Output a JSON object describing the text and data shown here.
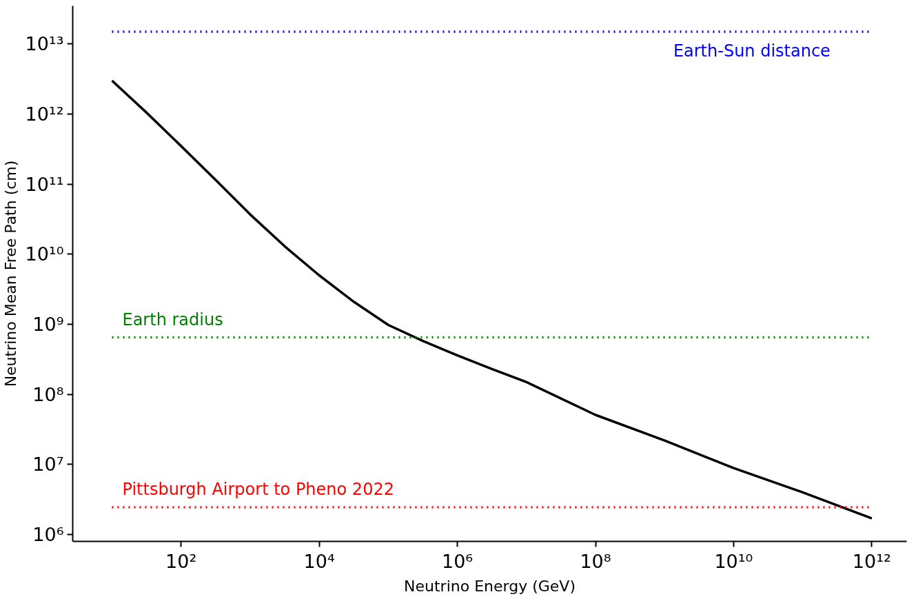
{
  "chart_data": {
    "type": "line",
    "xlabel": "Neutrino Energy (GeV)",
    "ylabel": "Neutrino Mean Free Path (cm)",
    "log": "xy",
    "grid": false,
    "marker": "none",
    "line_style": "solid",
    "series": [
      {
        "color": "#000000",
        "x": [
          10.0,
          31.6,
          100.0,
          316.0,
          1000.0,
          3160.0,
          10000.0,
          31600.0,
          100000.0,
          316000.0,
          1000000.0,
          3160000.0,
          10000000.0,
          100000000.0,
          1000000000.0,
          10000000000.0,
          100000000000.0,
          1000000000000.0
        ],
        "values": [
          3000000000000.0,
          1050000000000.0,
          350000000000.0,
          115000000000.0,
          37000000000.0,
          13000000000.0,
          5000000000.0,
          2100000000.0,
          980000000.0,
          580000000.0,
          360000000.0,
          230000000.0,
          150000000.0,
          51000000.0,
          22000000.0,
          8900000.0,
          4000000.0,
          1700000.0
        ]
      }
    ],
    "ref_lines": [
      {
        "axis": "y",
        "value": 15000000000000.0,
        "color": "#0000ff",
        "line_style": "dotted",
        "label": "Earth-Sun distance"
      },
      {
        "axis": "y",
        "value": 650000000.0,
        "color": "#008000",
        "line_style": "dotted",
        "label": "Earth radius"
      },
      {
        "axis": "y",
        "value": 2450000.0,
        "color": "#ff0000",
        "line_style": "dotted",
        "label": "Pittsburgh Airport to Pheno 2022"
      }
    ],
    "xlim": [
      2.7,
      3200000000000.0
    ],
    "ylim": [
      800000.0,
      35000000000000.0
    ],
    "xticks": [
      {
        "value": 100.0,
        "label": "10²"
      },
      {
        "value": 10000.0,
        "label": "10⁴"
      },
      {
        "value": 1000000.0,
        "label": "10⁶"
      },
      {
        "value": 100000000.0,
        "label": "10⁸"
      },
      {
        "value": 10000000000.0,
        "label": "10¹⁰"
      },
      {
        "value": 1000000000000.0,
        "label": "10¹²"
      }
    ],
    "yticks": [
      {
        "value": 1000000.0,
        "label": "10⁶"
      },
      {
        "value": 10000000.0,
        "label": "10⁷"
      },
      {
        "value": 100000000.0,
        "label": "10⁸"
      },
      {
        "value": 1000000000.0,
        "label": "10⁹"
      },
      {
        "value": 10000000000.0,
        "label": "10¹⁰"
      },
      {
        "value": 100000000000.0,
        "label": "10¹¹"
      },
      {
        "value": 1000000000000.0,
        "label": "10¹²"
      },
      {
        "value": 10000000000000.0,
        "label": "10¹³"
      }
    ]
  }
}
